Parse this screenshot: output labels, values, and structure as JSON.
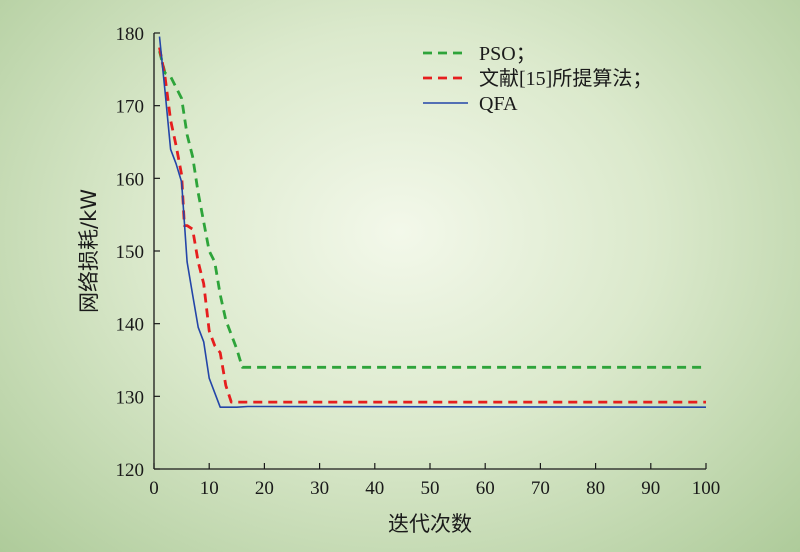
{
  "chart_data": {
    "type": "line",
    "xlabel": "迭代次数",
    "ylabel": "网络损耗/kW",
    "xlim": [
      0,
      100
    ],
    "ylim": [
      120,
      180
    ],
    "xticks": [
      0,
      10,
      20,
      30,
      40,
      50,
      60,
      70,
      80,
      90,
      100
    ],
    "yticks": [
      120,
      130,
      140,
      150,
      160,
      170,
      180
    ],
    "legend_position": "top-right",
    "series": [
      {
        "name": "PSO；",
        "color": "#2ea43a",
        "dash": "dashed",
        "points": [
          [
            1,
            177.5
          ],
          [
            2,
            174.5
          ],
          [
            3,
            174
          ],
          [
            4,
            172.5
          ],
          [
            5,
            171
          ],
          [
            6,
            166
          ],
          [
            7,
            163
          ],
          [
            8,
            158
          ],
          [
            9,
            154
          ],
          [
            10,
            150
          ],
          [
            11,
            148.5
          ],
          [
            12,
            144
          ],
          [
            13,
            140.5
          ],
          [
            14,
            138.5
          ],
          [
            15,
            136.5
          ],
          [
            16,
            134
          ],
          [
            17,
            134
          ],
          [
            18,
            134
          ],
          [
            100,
            134
          ]
        ]
      },
      {
        "name": "文献[15]所提算法；",
        "color": "#e61e1e",
        "dash": "dashed",
        "points": [
          [
            1,
            178
          ],
          [
            2,
            174
          ],
          [
            3,
            168
          ],
          [
            4,
            164.5
          ],
          [
            5,
            160.5
          ],
          [
            5.5,
            153.5
          ],
          [
            6,
            153.5
          ],
          [
            7,
            153
          ],
          [
            8,
            148.5
          ],
          [
            9,
            145.5
          ],
          [
            10,
            139
          ],
          [
            11,
            137
          ],
          [
            12,
            136
          ],
          [
            13,
            131.5
          ],
          [
            14,
            129.2
          ],
          [
            15,
            129.2
          ],
          [
            100,
            129.2
          ]
        ]
      },
      {
        "name": "QFA",
        "color": "#2345a8",
        "dash": "solid",
        "points": [
          [
            1,
            179.5
          ],
          [
            2,
            172
          ],
          [
            3,
            164
          ],
          [
            4,
            162
          ],
          [
            5,
            159.5
          ],
          [
            6,
            148.5
          ],
          [
            7,
            144
          ],
          [
            8,
            139.5
          ],
          [
            9,
            137.5
          ],
          [
            10,
            132.5
          ],
          [
            11,
            130.5
          ],
          [
            12,
            128.5
          ],
          [
            15,
            128.5
          ],
          [
            17,
            128.6
          ],
          [
            100,
            128.5
          ]
        ]
      }
    ]
  }
}
